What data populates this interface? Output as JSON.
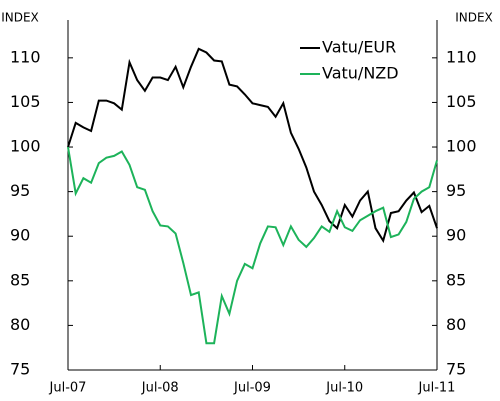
{
  "chart_data": {
    "type": "line",
    "y_unit_left": "INDEX",
    "y_unit_right": "INDEX",
    "xlim": [
      0,
      48
    ],
    "xticks": [
      {
        "value": 0,
        "label": "Jul-07"
      },
      {
        "value": 12,
        "label": "Jul-08"
      },
      {
        "value": 24,
        "label": "Jul-09"
      },
      {
        "value": 36,
        "label": "Jul-10"
      },
      {
        "value": 48,
        "label": "Jul-11"
      }
    ],
    "ylim": [
      75,
      112
    ],
    "yticks": [
      75,
      80,
      85,
      90,
      95,
      100,
      105,
      110
    ],
    "y2lim": [
      75,
      112
    ],
    "y2ticks": [
      75,
      80,
      85,
      90,
      95,
      100,
      105,
      110
    ],
    "grid": false,
    "legend": "upper right",
    "series": [
      {
        "name": "Vatu/EUR",
        "color": "#000000",
        "values": [
          100,
          102.7,
          102.2,
          101.8,
          105.2,
          105.2,
          104.9,
          104.2,
          109.5,
          107.5,
          106.3,
          107.8,
          107.8,
          107.5,
          109,
          106.7,
          109,
          111,
          110.6,
          109.7,
          109.6,
          107,
          106.8,
          105.9,
          104.9,
          104.7,
          104.5,
          103.4,
          104.9,
          101.6,
          99.8,
          97.7,
          95,
          93.5,
          91.7,
          90.9,
          93.5,
          92.2,
          94,
          95,
          90.9,
          89.5,
          92.6,
          92.8,
          94,
          94.9,
          92.7,
          93.4,
          90.9
        ]
      },
      {
        "name": "Vatu/NZD",
        "color": "#1db35a",
        "values": [
          100,
          94.8,
          96.5,
          96,
          98.2,
          98.8,
          99,
          99.5,
          98,
          95.5,
          95.2,
          92.8,
          91.2,
          91.1,
          90.3,
          87,
          83.4,
          83.7,
          78,
          78,
          83.3,
          81.3,
          85,
          86.9,
          86.4,
          89.2,
          91.1,
          91,
          89,
          91.1,
          89.6,
          88.8,
          89.8,
          91.1,
          90.5,
          92.8,
          91,
          90.6,
          91.8,
          92.3,
          92.8,
          93.2,
          89.9,
          90.2,
          91.6,
          94.2,
          95,
          95.5,
          98.5
        ]
      }
    ]
  }
}
